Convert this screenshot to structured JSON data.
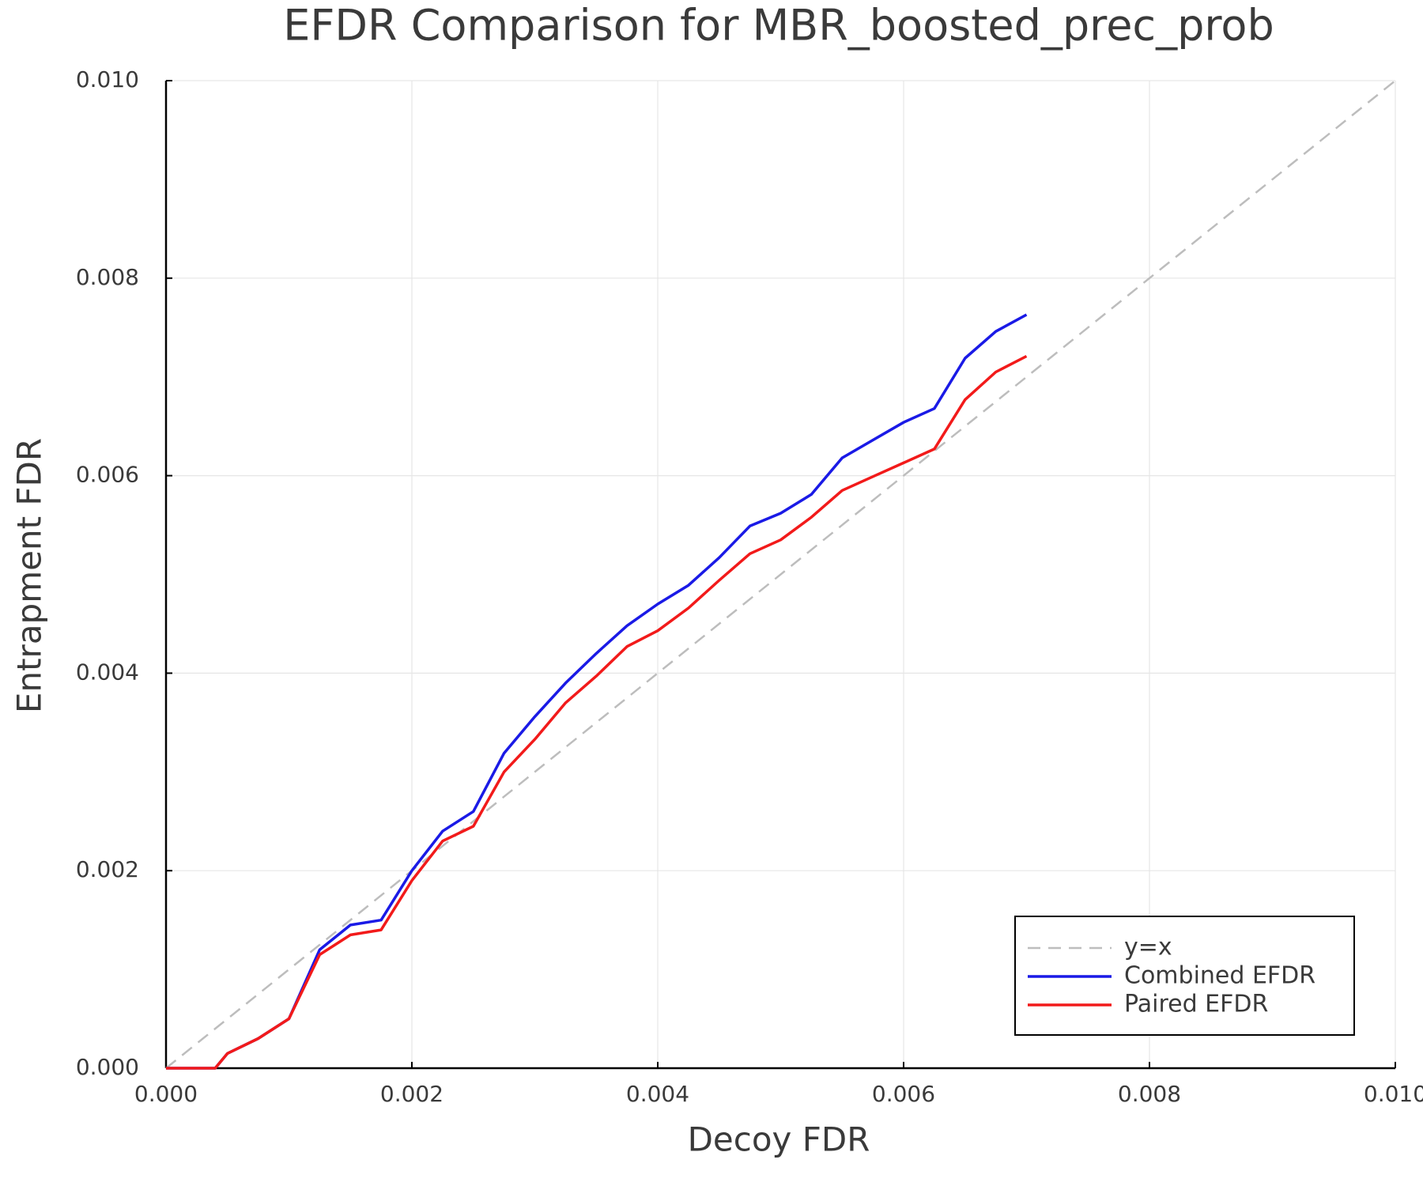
{
  "chart_data": {
    "type": "line",
    "title": "EFDR Comparison for MBR_boosted_prec_prob",
    "x_label": "Decoy FDR",
    "y_label": "Entrapment FDR",
    "xlim": [
      0,
      0.01
    ],
    "ylim": [
      0,
      0.01
    ],
    "xticks": [
      {
        "value": 0,
        "label": "0.000"
      },
      {
        "value": 0.002,
        "label": "0.002"
      },
      {
        "value": 0.004,
        "label": "0.004"
      },
      {
        "value": 0.006,
        "label": "0.006"
      },
      {
        "value": 0.008,
        "label": "0.008"
      },
      {
        "value": 0.01,
        "label": "0.010"
      }
    ],
    "yticks": [
      {
        "value": 0,
        "label": "0.000"
      },
      {
        "value": 0.002,
        "label": "0.002"
      },
      {
        "value": 0.004,
        "label": "0.004"
      },
      {
        "value": 0.006,
        "label": "0.006"
      },
      {
        "value": 0.008,
        "label": "0.008"
      },
      {
        "value": 0.01,
        "label": "0.010"
      }
    ],
    "grid": true,
    "legend": "bottom-right",
    "series": [
      {
        "name": "y=x",
        "color": "#bdbdbd",
        "dashed": true,
        "x": [
          0,
          0.01
        ],
        "values": [
          0,
          0.01
        ]
      },
      {
        "name": "Combined EFDR",
        "color": "#1a1ae6",
        "dashed": false,
        "x": [
          0,
          0.0004,
          0.0005,
          0.00075,
          0.001,
          0.00125,
          0.0015,
          0.00175,
          0.002,
          0.00225,
          0.0025,
          0.00275,
          0.003,
          0.00325,
          0.0035,
          0.00375,
          0.004,
          0.00425,
          0.0045,
          0.00475,
          0.005,
          0.00525,
          0.0055,
          0.00575,
          0.006,
          0.00625,
          0.0065,
          0.00675,
          0.007
        ],
        "values": [
          0,
          0,
          0.00015,
          0.0003,
          0.0005,
          0.0012,
          0.00145,
          0.0015,
          0.002,
          0.0024,
          0.0026,
          0.00319,
          0.00356,
          0.0039,
          0.0042,
          0.00448,
          0.0047,
          0.00489,
          0.00517,
          0.00549,
          0.00562,
          0.00581,
          0.00618,
          0.00636,
          0.00654,
          0.00668,
          0.00719,
          0.00746,
          0.00763
        ]
      },
      {
        "name": "Paired EFDR",
        "color": "#f21a1a",
        "dashed": false,
        "x": [
          0,
          0.0004,
          0.0005,
          0.00075,
          0.001,
          0.00125,
          0.0015,
          0.00175,
          0.002,
          0.00225,
          0.0025,
          0.00275,
          0.003,
          0.00325,
          0.0035,
          0.00375,
          0.004,
          0.00425,
          0.0045,
          0.00475,
          0.005,
          0.00525,
          0.0055,
          0.00575,
          0.006,
          0.00625,
          0.0065,
          0.00675,
          0.007
        ],
        "values": [
          0,
          0,
          0.00015,
          0.0003,
          0.0005,
          0.00115,
          0.00135,
          0.0014,
          0.0019,
          0.0023,
          0.00245,
          0.003,
          0.00333,
          0.0037,
          0.00397,
          0.00427,
          0.00443,
          0.00466,
          0.00494,
          0.00521,
          0.00535,
          0.00558,
          0.00585,
          0.00599,
          0.00613,
          0.00627,
          0.00677,
          0.00705,
          0.00721
        ]
      }
    ]
  }
}
